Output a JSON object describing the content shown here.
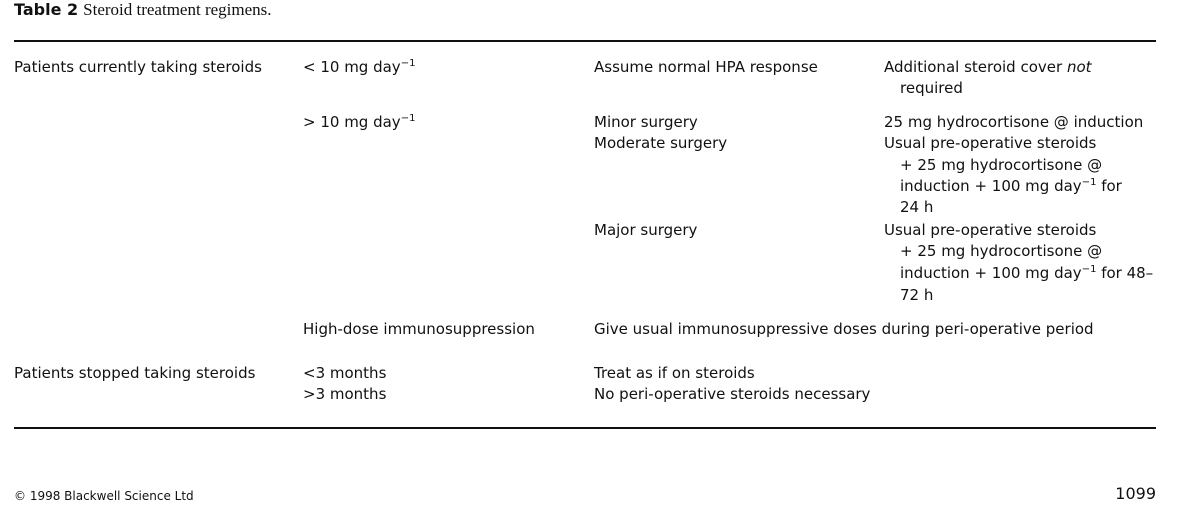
{
  "caption": {
    "label": "Table 2",
    "title": "Steroid treatment regimens."
  },
  "rows": {
    "current": {
      "group": "Patients currently taking steroids",
      "low": {
        "dose": "< 10 mg day",
        "sup": "−1",
        "situation": "Assume normal HPA response",
        "action_lines": [
          "Additional steroid cover ",
          "not",
          "required"
        ]
      },
      "high": {
        "dose": "> 10 mg day",
        "sup": "−1",
        "minor": {
          "situation": "Minor surgery",
          "action": "25 mg hydrocortisone @ induction"
        },
        "moderate": {
          "situation": "Moderate surgery",
          "l1": "Usual pre-operative steroids",
          "l2": "+ 25 mg hydrocortisone @",
          "l3a": "induction + 100 mg day",
          "l3sup": "−1",
          "l3b": " for",
          "l4": "24 h"
        },
        "major": {
          "situation": "Major surgery",
          "l1": "Usual pre-operative steroids",
          "l2": "+ 25 mg hydrocortisone @",
          "l3a": "induction + 100 mg day",
          "l3sup": "−1",
          "l3b": " for 48–",
          "l4": "72 h"
        }
      },
      "immuno": {
        "dose": "High-dose immunosuppression",
        "action": "Give usual immunosuppressive doses during peri-operative period"
      }
    },
    "stopped": {
      "group": "Patients stopped taking steroids",
      "lt3": {
        "duration": "<3 months",
        "action": "Treat as if on steroids"
      },
      "gt3": {
        "duration": ">3 months",
        "action": "No peri-operative steroids necessary"
      }
    }
  },
  "footer": {
    "copyright": "© 1998 Blackwell Science Ltd",
    "page": "1099"
  }
}
